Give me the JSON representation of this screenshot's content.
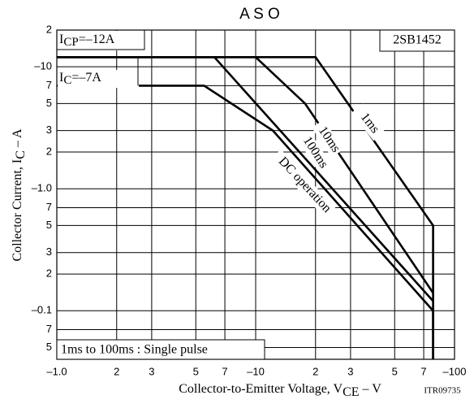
{
  "chart_data": {
    "type": "line",
    "title": "A S O",
    "x_label": [
      "Collector-to-Emitter Voltage, V",
      "CE",
      "  –  V"
    ],
    "y_label": [
      "Collector Current, I",
      "C",
      "  –  A"
    ],
    "code": "ITR09735",
    "annotations": {
      "icp": [
        "I",
        "CP",
        "=–12A"
      ],
      "ic": [
        "I",
        "C",
        "=–7A"
      ],
      "part": "2SB1452",
      "note": "1ms to 100ms : Single pulse"
    },
    "log_x": true,
    "log_y": true,
    "grid": true,
    "xlim": [
      1,
      100
    ],
    "ylim": [
      0.04,
      20
    ],
    "xticks": [
      {
        "value": 1,
        "label": "–1.0"
      },
      2,
      3,
      5,
      7,
      {
        "value": 10,
        "label": "–10"
      },
      {
        "value": 20,
        "label": "2"
      },
      {
        "value": 30,
        "label": "3"
      },
      {
        "value": 50,
        "label": "5"
      },
      {
        "value": 70,
        "label": "7"
      },
      {
        "value": 100,
        "label": "–100"
      }
    ],
    "yticks": [
      {
        "value": 20,
        "label": "2"
      },
      {
        "value": 10,
        "label": "–10"
      },
      7,
      5,
      3,
      2,
      {
        "value": 1,
        "label": "–1.0"
      },
      {
        "value": 0.7,
        "label": "7"
      },
      {
        "value": 0.5,
        "label": "5"
      },
      {
        "value": 0.3,
        "label": "3"
      },
      {
        "value": 0.2,
        "label": "2"
      },
      {
        "value": 0.1,
        "label": "–0.1"
      },
      {
        "value": 0.07,
        "label": "7"
      },
      {
        "value": 0.05,
        "label": "5"
      }
    ],
    "series": [
      {
        "name": "1ms",
        "color": "#000000",
        "x": [
          1,
          20,
          78,
          78
        ],
        "values": [
          12,
          12,
          0.5,
          0.04
        ]
      },
      {
        "name": "10ms",
        "color": "#000000",
        "x": [
          1,
          10,
          17.7,
          78
        ],
        "values": [
          12,
          12,
          5,
          0.14
        ]
      },
      {
        "name": "100ms",
        "color": "#000000",
        "x": [
          1,
          6.2,
          78
        ],
        "values": [
          12,
          12,
          0.12
        ]
      },
      {
        "name": "DC operation",
        "color": "#000000",
        "x": [
          1,
          5.5,
          12.2,
          78,
          78
        ],
        "values": [
          7,
          7,
          3,
          0.1,
          0.04
        ]
      }
    ]
  }
}
